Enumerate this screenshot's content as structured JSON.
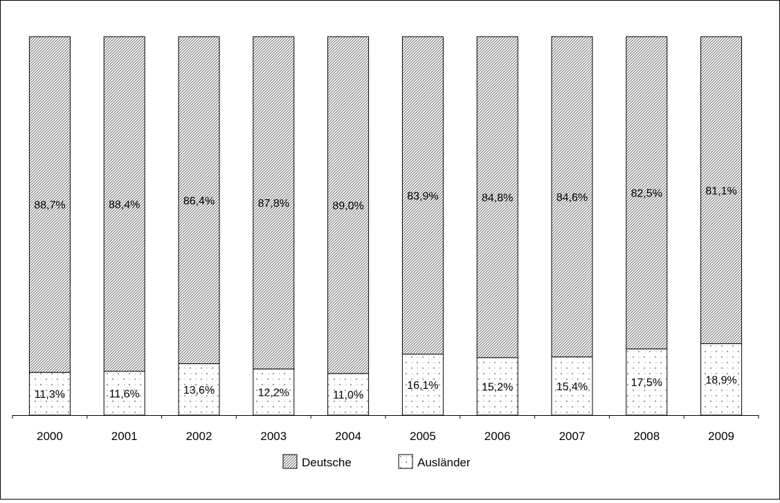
{
  "chart_data": {
    "type": "bar",
    "stacked": true,
    "percent_stacked": true,
    "categories": [
      "2000",
      "2001",
      "2002",
      "2003",
      "2004",
      "2005",
      "2006",
      "2007",
      "2008",
      "2009"
    ],
    "series": [
      {
        "name": "Ausländer",
        "values": [
          11.3,
          11.6,
          13.6,
          12.2,
          11.0,
          16.1,
          15.2,
          15.4,
          17.5,
          18.9
        ],
        "labels": [
          "11,3%",
          "11,6%",
          "13,6%",
          "12,2%",
          "11,0%",
          "16,1%",
          "15,2%",
          "15,4%",
          "17,5%",
          "18,9%"
        ],
        "pattern": "dotted-crosses"
      },
      {
        "name": "Deutsche",
        "values": [
          88.7,
          88.4,
          86.4,
          87.8,
          89.0,
          83.9,
          84.8,
          84.6,
          82.5,
          81.1
        ],
        "labels": [
          "88,7%",
          "88,4%",
          "86,4%",
          "87,8%",
          "89,0%",
          "83,9%",
          "84,8%",
          "84,6%",
          "82,5%",
          "81,1%"
        ],
        "pattern": "diagonal-hatch"
      }
    ],
    "ylim": [
      0,
      100
    ],
    "legend": {
      "position": "bottom",
      "entries": [
        "Deutsche",
        "Ausländer"
      ]
    },
    "grid": false,
    "colors": {
      "stroke": "#000000",
      "hatch": "#6e6e6e",
      "background": "#ffffff"
    }
  }
}
